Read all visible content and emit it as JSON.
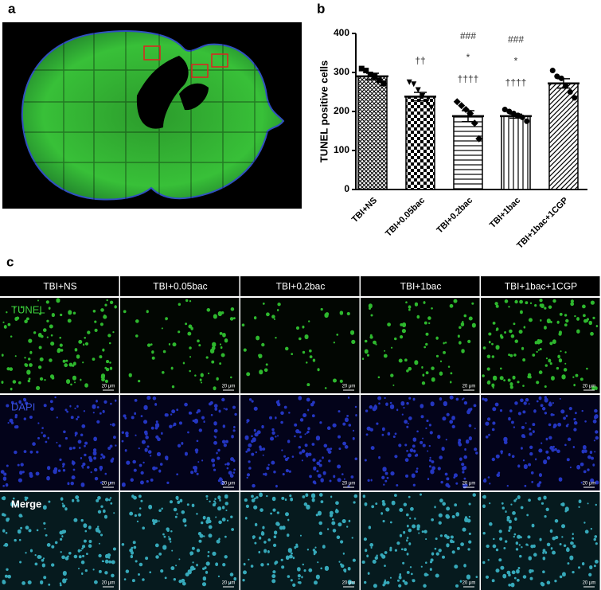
{
  "panel_labels": [
    "a",
    "b",
    "c"
  ],
  "chart_data": {
    "type": "bar",
    "y_label": "TUNEL positive cells",
    "categories": [
      "TBI+NS",
      "TBI+0.05bac",
      "TBI+0.2bac",
      "TBI+1bac",
      "TBI+1bac+1CGP"
    ],
    "values": [
      290,
      238,
      188,
      188,
      272
    ],
    "errors": [
      8,
      11,
      14,
      5,
      12
    ],
    "points": [
      [
        310,
        305,
        295,
        290,
        280,
        272
      ],
      [
        275,
        270,
        255,
        240,
        225,
        210
      ],
      [
        225,
        215,
        205,
        195,
        170,
        130
      ],
      [
        205,
        200,
        195,
        190,
        185,
        175
      ],
      [
        305,
        290,
        285,
        265,
        250,
        235
      ]
    ],
    "markers": [
      "square",
      "triangle-down",
      "diamond",
      "circle",
      "circle"
    ],
    "patterns": [
      "crosshatch",
      "checker",
      "horizontal",
      "vertical",
      "diagonal"
    ],
    "value_annotations": [
      null,
      [
        "††"
      ],
      [
        "###",
        "*",
        "††††"
      ],
      [
        "###",
        "*",
        "††††"
      ],
      null
    ],
    "ylim": [
      0,
      400
    ],
    "yticks": [
      0,
      100,
      200,
      300,
      400
    ],
    "grid": false,
    "color": "#000000"
  },
  "image_grid": {
    "columns": [
      "TBI+NS",
      "TBI+0.05bac",
      "TBI+0.2bac",
      "TBI+1bac",
      "TBI+1bac+1CGP"
    ],
    "rows": [
      "TUNEL",
      "DAPI",
      "Merge"
    ],
    "row_colors": [
      "#3ccf3c",
      "#3a52e0",
      "#ffffff"
    ],
    "scale_bar": "20 μm"
  }
}
